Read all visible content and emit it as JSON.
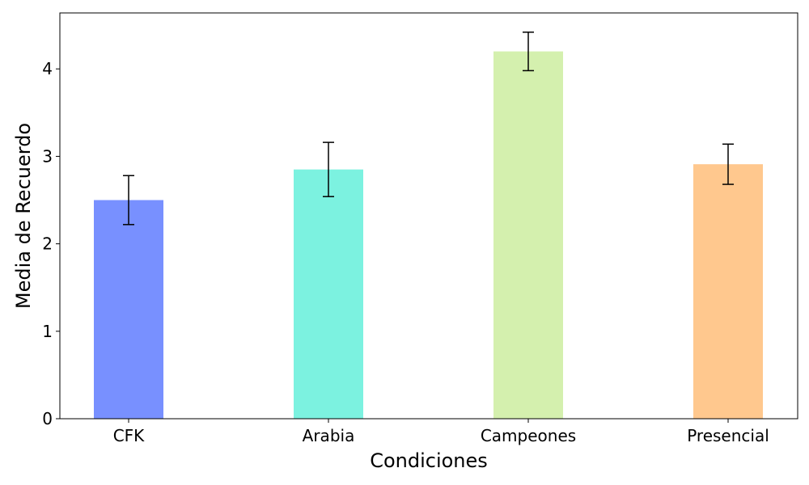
{
  "chart_data": {
    "type": "bar",
    "title": "",
    "xlabel": "Condiciones",
    "ylabel": "Media de Recuerdo",
    "categories": [
      "CFK",
      "Arabia",
      "Campeones",
      "Presencial"
    ],
    "values": [
      2.5,
      2.85,
      4.2,
      2.91
    ],
    "errors": [
      0.28,
      0.31,
      0.22,
      0.23
    ],
    "colors": [
      "#7890ff",
      "#7cf2e0",
      "#d4f0ae",
      "#ffc88e"
    ],
    "ylim": [
      0,
      4.64
    ],
    "yticks": [
      0,
      1,
      2,
      3,
      4
    ],
    "grid": false,
    "legend": "none"
  }
}
